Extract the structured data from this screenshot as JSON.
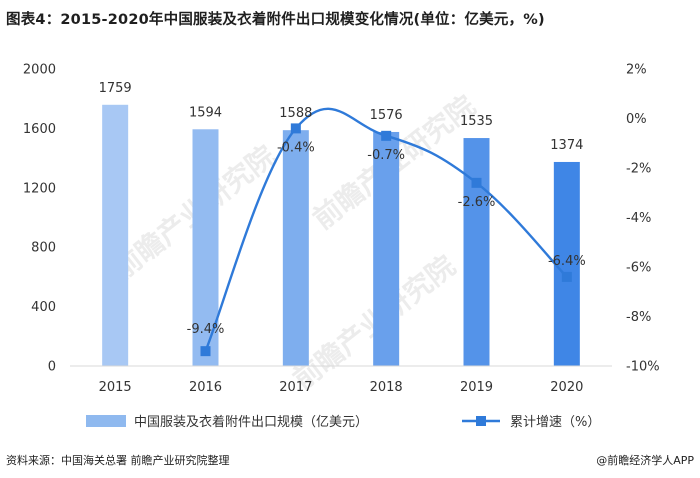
{
  "title": "图表4：2015-2020年中国服装及衣着附件出口规模变化情况(单位：亿美元，%)",
  "footer": {
    "source": "资料来源：中国海关总署 前瞻产业研究院整理",
    "brand": "@前瞻经济学人APP"
  },
  "watermark_text": "前瞻产业研究院",
  "colors": {
    "bar_start": "#a8c8f4",
    "bar_end": "#3f86e6",
    "line": "#2f7ad9",
    "marker": "#2f7ad9",
    "legend_bar": "#8fb9ef"
  },
  "chart_data": {
    "type": "bar+line",
    "categories": [
      "2015",
      "2016",
      "2017",
      "2018",
      "2019",
      "2020"
    ],
    "series": [
      {
        "name": "中国服装及衣着附件出口规模（亿美元）",
        "type": "bar",
        "axis": "left",
        "values": [
          1759,
          1594,
          1588,
          1576,
          1535,
          1374
        ],
        "labels": [
          "1759",
          "1594",
          "1588",
          "1576",
          "1535",
          "1374"
        ]
      },
      {
        "name": "累计增速（%）",
        "type": "line",
        "axis": "right",
        "values": [
          null,
          -9.4,
          -0.4,
          -0.7,
          -2.6,
          -6.4
        ],
        "labels": [
          "",
          "-9.4%",
          "-0.4%",
          "-0.7%",
          "-2.6%",
          "-6.4%"
        ]
      }
    ],
    "y_left": {
      "min": 0,
      "max": 2000,
      "ticks": [
        "0",
        "400",
        "800",
        "1200",
        "1600",
        "2000"
      ]
    },
    "y_right": {
      "min": -10,
      "max": 2,
      "ticks": [
        "-10%",
        "-8%",
        "-6%",
        "-4%",
        "-2%",
        "0%",
        "2%"
      ]
    },
    "legend_position": "bottom",
    "grid": false
  }
}
